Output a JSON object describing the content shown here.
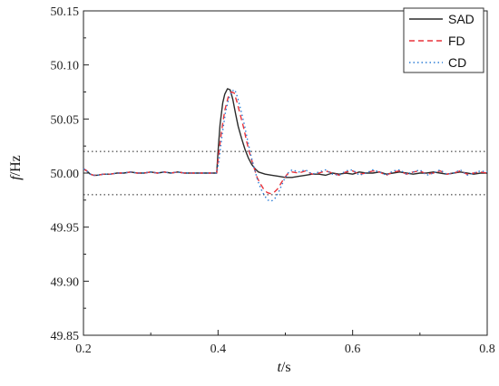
{
  "chart_data": {
    "type": "line",
    "xlabel_italic": "t",
    "xlabel_unit": "/s",
    "ylabel_italic": "f",
    "ylabel_unit": "/Hz",
    "xlim": [
      0.2,
      0.8
    ],
    "ylim": [
      49.85,
      50.15
    ],
    "x_ticks": [
      0.2,
      0.4,
      0.6,
      0.8
    ],
    "x_tick_labels": [
      "0.2",
      "0.4",
      "0.6",
      "0.8"
    ],
    "y_ticks": [
      49.85,
      49.9,
      49.95,
      50.0,
      50.05,
      50.1,
      50.15
    ],
    "y_tick_labels": [
      "49.85",
      "49.90",
      "49.95",
      "50.00",
      "50.05",
      "50.10",
      "50.15"
    ],
    "reference_lines": [
      50.02,
      49.98
    ],
    "legend_position": "top-right",
    "grid": false,
    "series": [
      {
        "name": "SAD",
        "color": "#2b2b2b",
        "dash": "solid",
        "x": [
          0.2,
          0.205,
          0.21,
          0.215,
          0.22,
          0.23,
          0.24,
          0.25,
          0.26,
          0.27,
          0.28,
          0.29,
          0.3,
          0.31,
          0.32,
          0.33,
          0.34,
          0.35,
          0.36,
          0.37,
          0.38,
          0.39,
          0.398,
          0.4,
          0.403,
          0.407,
          0.41,
          0.414,
          0.418,
          0.422,
          0.426,
          0.43,
          0.435,
          0.44,
          0.445,
          0.45,
          0.455,
          0.46,
          0.47,
          0.48,
          0.49,
          0.5,
          0.51,
          0.52,
          0.53,
          0.54,
          0.55,
          0.56,
          0.57,
          0.58,
          0.59,
          0.6,
          0.61,
          0.62,
          0.63,
          0.64,
          0.65,
          0.66,
          0.67,
          0.68,
          0.69,
          0.7,
          0.71,
          0.72,
          0.73,
          0.74,
          0.75,
          0.76,
          0.77,
          0.78,
          0.79,
          0.8
        ],
        "y": [
          50.004,
          50.002,
          49.999,
          49.998,
          49.998,
          49.999,
          49.999,
          50.0,
          50.0,
          50.001,
          50.0,
          50.0,
          50.001,
          50.0,
          50.001,
          50.0,
          50.001,
          50.0,
          50.0,
          50.0,
          50.0,
          50.0,
          50.0,
          50.02,
          50.045,
          50.065,
          50.073,
          50.078,
          50.077,
          50.068,
          50.055,
          50.043,
          50.032,
          50.022,
          50.014,
          50.008,
          50.004,
          50.001,
          49.999,
          49.998,
          49.997,
          49.996,
          49.996,
          49.997,
          49.998,
          49.999,
          49.999,
          49.998,
          50.0,
          49.999,
          50.0,
          49.999,
          50.001,
          50.0,
          50.0,
          50.001,
          49.999,
          50.0,
          50.001,
          50.0,
          49.999,
          50.0,
          50.0,
          50.001,
          50.0,
          49.999,
          50.0,
          50.001,
          50.0,
          49.999,
          50.0,
          50.0
        ]
      },
      {
        "name": "FD",
        "color": "#e8323a",
        "dash": "dashed",
        "x": [
          0.2,
          0.205,
          0.21,
          0.215,
          0.22,
          0.23,
          0.24,
          0.25,
          0.26,
          0.27,
          0.28,
          0.29,
          0.3,
          0.31,
          0.32,
          0.33,
          0.34,
          0.35,
          0.36,
          0.37,
          0.38,
          0.39,
          0.398,
          0.4,
          0.405,
          0.41,
          0.415,
          0.42,
          0.424,
          0.428,
          0.433,
          0.438,
          0.443,
          0.448,
          0.453,
          0.458,
          0.463,
          0.468,
          0.473,
          0.478,
          0.483,
          0.488,
          0.493,
          0.498,
          0.503,
          0.51,
          0.52,
          0.53,
          0.54,
          0.55,
          0.56,
          0.57,
          0.58,
          0.59,
          0.6,
          0.61,
          0.62,
          0.63,
          0.64,
          0.65,
          0.66,
          0.67,
          0.68,
          0.69,
          0.7,
          0.71,
          0.72,
          0.73,
          0.74,
          0.75,
          0.76,
          0.77,
          0.78,
          0.79,
          0.8
        ],
        "y": [
          50.004,
          50.002,
          49.999,
          49.998,
          49.998,
          49.999,
          49.999,
          50.0,
          50.0,
          50.001,
          50.0,
          50.0,
          50.001,
          50.0,
          50.001,
          50.0,
          50.001,
          50.0,
          50.0,
          50.0,
          50.0,
          50.0,
          50.0,
          50.012,
          50.038,
          50.058,
          50.07,
          50.075,
          50.074,
          50.066,
          50.054,
          50.042,
          50.028,
          50.016,
          50.006,
          49.996,
          49.99,
          49.985,
          49.982,
          49.981,
          49.982,
          49.985,
          49.99,
          49.995,
          49.999,
          50.001,
          50.0,
          50.002,
          49.999,
          50.0,
          50.002,
          50.0,
          49.998,
          50.001,
          50.002,
          49.999,
          50.0,
          50.002,
          50.001,
          49.998,
          50.001,
          50.002,
          49.999,
          50.001,
          50.002,
          49.999,
          50.0,
          50.002,
          49.999,
          50.0,
          50.002,
          49.999,
          50.0,
          50.001,
          50.0
        ]
      },
      {
        "name": "CD",
        "color": "#2f7fd6",
        "dash": "dotted",
        "x": [
          0.2,
          0.205,
          0.21,
          0.215,
          0.22,
          0.23,
          0.24,
          0.25,
          0.26,
          0.27,
          0.28,
          0.29,
          0.3,
          0.31,
          0.32,
          0.33,
          0.34,
          0.35,
          0.36,
          0.37,
          0.38,
          0.39,
          0.398,
          0.401,
          0.406,
          0.411,
          0.416,
          0.421,
          0.425,
          0.429,
          0.434,
          0.439,
          0.444,
          0.449,
          0.454,
          0.459,
          0.464,
          0.469,
          0.474,
          0.479,
          0.484,
          0.489,
          0.494,
          0.499,
          0.504,
          0.51,
          0.52,
          0.53,
          0.54,
          0.55,
          0.56,
          0.57,
          0.58,
          0.59,
          0.6,
          0.61,
          0.62,
          0.63,
          0.64,
          0.65,
          0.66,
          0.67,
          0.68,
          0.69,
          0.7,
          0.71,
          0.72,
          0.73,
          0.74,
          0.75,
          0.76,
          0.77,
          0.78,
          0.79,
          0.8
        ],
        "y": [
          50.004,
          50.002,
          49.999,
          49.998,
          49.998,
          49.999,
          49.999,
          50.0,
          50.0,
          50.001,
          50.0,
          50.0,
          50.001,
          50.0,
          50.001,
          50.0,
          50.001,
          50.0,
          50.0,
          50.0,
          50.0,
          50.0,
          50.0,
          50.01,
          50.035,
          50.056,
          50.069,
          50.076,
          50.077,
          50.07,
          50.058,
          50.045,
          50.03,
          50.016,
          50.004,
          49.993,
          49.985,
          49.979,
          49.975,
          49.974,
          49.976,
          49.981,
          49.988,
          49.995,
          50.0,
          50.003,
          50.001,
          50.003,
          49.999,
          50.001,
          50.003,
          49.999,
          49.998,
          50.002,
          50.003,
          49.998,
          50.0,
          50.003,
          50.001,
          49.998,
          50.002,
          50.003,
          49.999,
          50.001,
          50.003,
          49.998,
          50.0,
          50.003,
          49.999,
          50.0,
          50.003,
          49.998,
          50.0,
          50.002,
          50.001
        ]
      }
    ]
  }
}
